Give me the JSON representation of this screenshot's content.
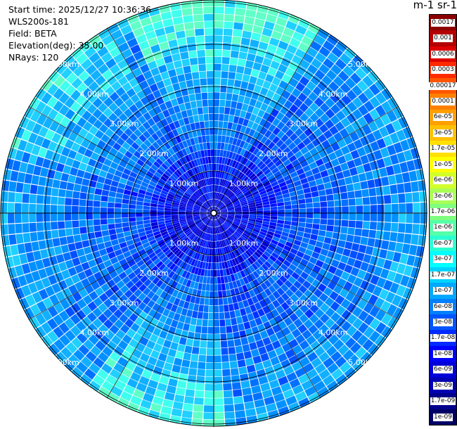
{
  "info": {
    "start_time": "Start time: 2025/12/27 10:36:36",
    "instrument": "WLS200s-181",
    "field": "Field: BETA",
    "elevation": "Elevation(deg): 35.00",
    "nrays": "NRays: 120"
  },
  "colorbar": {
    "title": "m-1 sr-1",
    "labels": [
      "0.0017",
      "0.001",
      "0.0006",
      "0.0003",
      "0.00017",
      "0.0001",
      "6e-05",
      "3e-05",
      "1.7e-05",
      "1e-05",
      "6e-06",
      "3e-06",
      "1.7e-06",
      "1e-06",
      "6e-07",
      "3e-07",
      "1.7e-07",
      "1e-07",
      "6e-08",
      "3e-08",
      "1.7e-08",
      "1e-08",
      "6e-09",
      "3e-09",
      "1.7e-09",
      "1e-09"
    ],
    "colors": [
      "#8b0000",
      "#b30000",
      "#dd0000",
      "#ff2a00",
      "#ff5500",
      "#ff7f00",
      "#ffa000",
      "#ffc000",
      "#ffe000",
      "#ffff00",
      "#d2ff2a",
      "#a8ff55",
      "#7fff7f",
      "#55ffa8",
      "#2affd2",
      "#00ffff",
      "#00d2ff",
      "#00a8ff",
      "#007fff",
      "#0055ff",
      "#002aff",
      "#0000ff",
      "#0000d9",
      "#0000b3",
      "#00008c",
      "#000066"
    ]
  },
  "chart_data": {
    "type": "heatmap",
    "projection": "polar (PPI scan)",
    "field": "BETA",
    "elevation_deg": 35.0,
    "n_rays": 120,
    "range_ring_labels": [
      "1.00km",
      "2.00km",
      "3.00km",
      "4.00km",
      "5.00km"
    ],
    "range_rings_km": [
      1,
      2,
      3,
      4,
      5
    ],
    "scale": "log",
    "value_range": [
      1e-09,
      0.0017
    ],
    "typical_values": "mostly 1e-08 to 1.7e-07 (blue to cyan), higher toward outer ranges"
  }
}
